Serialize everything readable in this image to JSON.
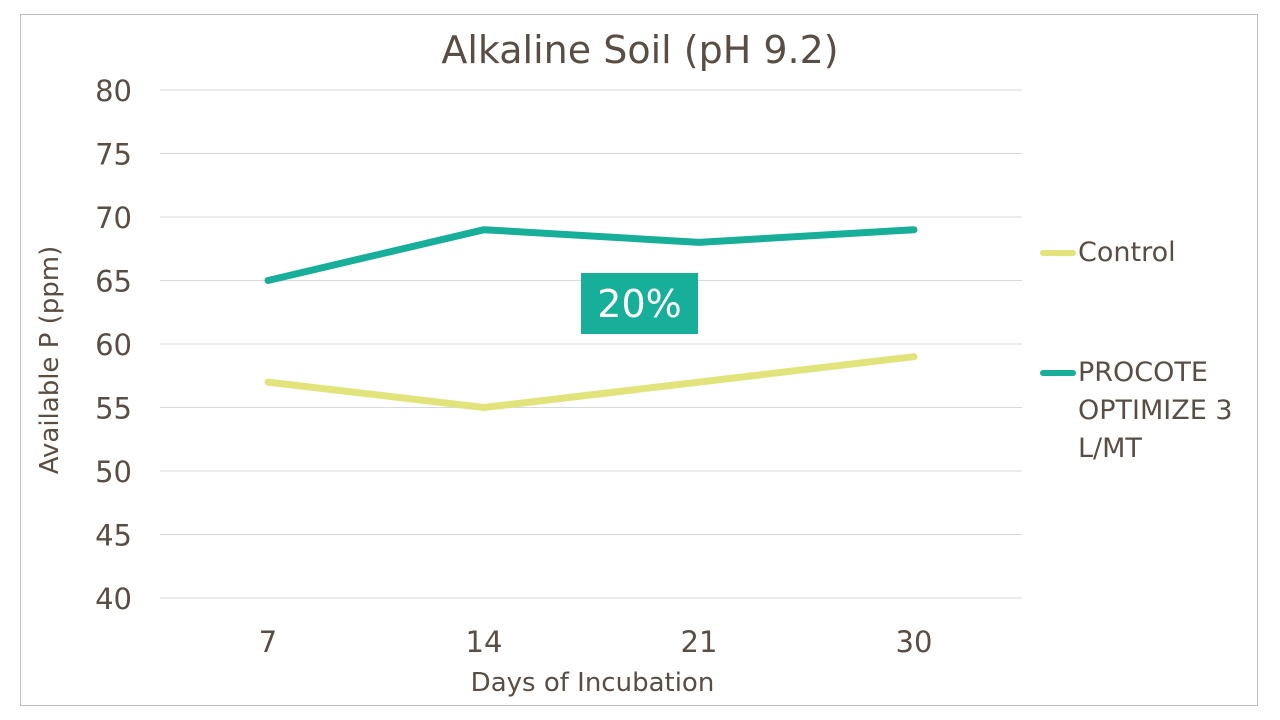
{
  "chart_data": {
    "type": "line",
    "title": "Alkaline Soil (pH 9.2)",
    "xlabel": "Days of Incubation",
    "ylabel": "Available P (ppm)",
    "categories": [
      "7",
      "14",
      "21",
      "30"
    ],
    "ylim": [
      40,
      80
    ],
    "yticks": [
      40,
      45,
      50,
      55,
      60,
      65,
      70,
      75,
      80
    ],
    "grid": true,
    "legend_position": "right",
    "series": [
      {
        "name": "Control",
        "values": [
          57,
          55,
          57,
          59
        ],
        "color": "#e2e37a"
      },
      {
        "name": "PROCOTE OPTIMIZE 3 L/MT",
        "values": [
          65,
          69,
          68,
          69
        ],
        "color": "#17af99"
      }
    ],
    "annotations": [
      {
        "text": "20%",
        "background": "#17af99",
        "color": "#ffffff"
      }
    ]
  },
  "labels": {
    "title": "Alkaline Soil (pH 9.2)",
    "xlabel": "Days of Incubation",
    "ylabel": "Available P (ppm)",
    "badge": "20%",
    "legend_control": "Control",
    "legend_procote": "PROCOTE OPTIMIZE 3 L/MT"
  }
}
